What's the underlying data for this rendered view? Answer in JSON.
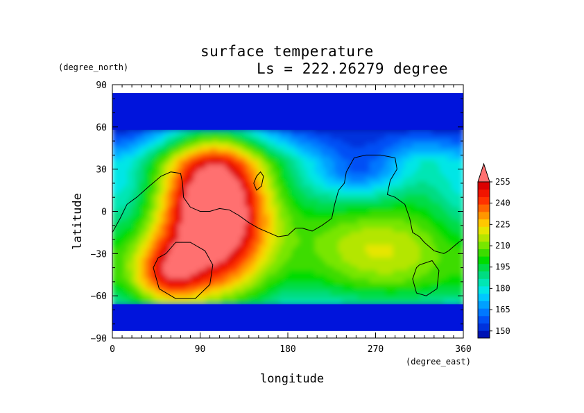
{
  "chart_data": {
    "type": "heatmap",
    "title": "surface temperature",
    "subtitle": "Ls = 222.26279 degree",
    "xlabel": "longitude",
    "ylabel": "latitude",
    "x_unit": "(degree_east)",
    "y_unit": "(degree_north)",
    "xlim": [
      0,
      360
    ],
    "ylim": [
      -90,
      90
    ],
    "x_ticks": [
      0,
      90,
      180,
      270,
      360
    ],
    "x_tick_labels": [
      "0",
      "90",
      "180",
      "270",
      "360"
    ],
    "y_ticks": [
      90,
      60,
      30,
      0,
      -30,
      -60,
      -90
    ],
    "y_tick_labels": [
      "90",
      "60",
      "30",
      "0",
      "−30",
      "−60",
      "−90"
    ],
    "colorbar": {
      "levels": [
        145,
        150,
        155,
        160,
        165,
        170,
        175,
        180,
        185,
        190,
        195,
        200,
        205,
        210,
        215,
        220,
        225,
        230,
        235,
        240,
        245,
        250,
        255,
        260
      ],
      "tick_values": [
        150,
        165,
        180,
        195,
        210,
        225,
        240,
        255
      ],
      "tick_labels": [
        "150",
        "165",
        "180",
        "195",
        "210",
        "225",
        "240",
        "255"
      ],
      "colors": [
        "#0014b4",
        "#0032dc",
        "#0050f5",
        "#0078ff",
        "#00a0ff",
        "#00c8ff",
        "#00e6e6",
        "#00e6b4",
        "#00dc82",
        "#00dc46",
        "#00dc00",
        "#3cdc00",
        "#78e600",
        "#b4e600",
        "#e6e600",
        "#ffc800",
        "#ff9600",
        "#ff6400",
        "#ff3200",
        "#f01400",
        "#dc0000",
        "#ff7070"
      ],
      "extend": "max"
    },
    "field_description_points": [
      {
        "lon": 100,
        "lat": -10,
        "value": 265
      },
      {
        "lon": 60,
        "lat": -45,
        "value": 265
      },
      {
        "lon": 130,
        "lat": 20,
        "value": 262
      },
      {
        "lon": 30,
        "lat": 20,
        "value": 215
      },
      {
        "lon": 100,
        "lat": 55,
        "value": 205
      },
      {
        "lon": 200,
        "lat": 20,
        "value": 190
      },
      {
        "lon": 250,
        "lat": 35,
        "value": 165
      },
      {
        "lon": 300,
        "lat": 30,
        "value": 185
      },
      {
        "lon": 260,
        "lat": -30,
        "value": 200
      },
      {
        "lon": 330,
        "lat": -50,
        "value": 205
      },
      {
        "lon": 180,
        "lat": 80,
        "value": 148
      },
      {
        "lon": 180,
        "lat": -80,
        "value": 148
      }
    ]
  }
}
